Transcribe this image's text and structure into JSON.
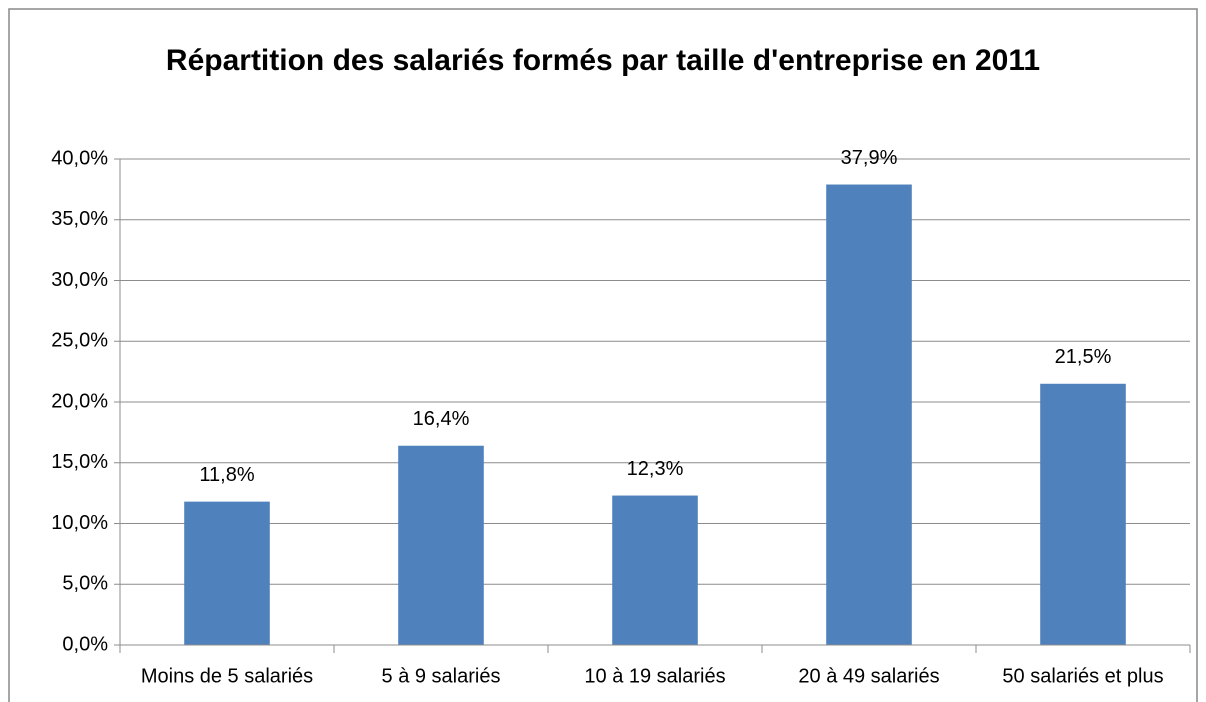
{
  "chart_data": {
    "type": "bar",
    "title": "Répartition des salariés formés par taille d'entreprise en 2011",
    "categories": [
      "Moins de 5 salariés",
      "5 à 9 salariés",
      "10 à 19 salariés",
      "20 à 49 salariés",
      "50 salariés et plus"
    ],
    "values": [
      11.8,
      16.4,
      12.3,
      37.9,
      21.5
    ],
    "value_labels": [
      "11,8%",
      "16,4%",
      "12,3%",
      "37,9%",
      "21,5%"
    ],
    "color": "#4f81bd",
    "ylim": [
      0,
      40
    ],
    "yticks": [
      {
        "value": 0,
        "label": "0,0%"
      },
      {
        "value": 5,
        "label": "5,0%"
      },
      {
        "value": 10,
        "label": "10,0%"
      },
      {
        "value": 15,
        "label": "15,0%"
      },
      {
        "value": 20,
        "label": "20,0%"
      },
      {
        "value": 25,
        "label": "25,0%"
      },
      {
        "value": 30,
        "label": "30,0%"
      },
      {
        "value": 35,
        "label": "35,0%"
      },
      {
        "value": 40,
        "label": "40,0%"
      }
    ],
    "grid": true
  }
}
